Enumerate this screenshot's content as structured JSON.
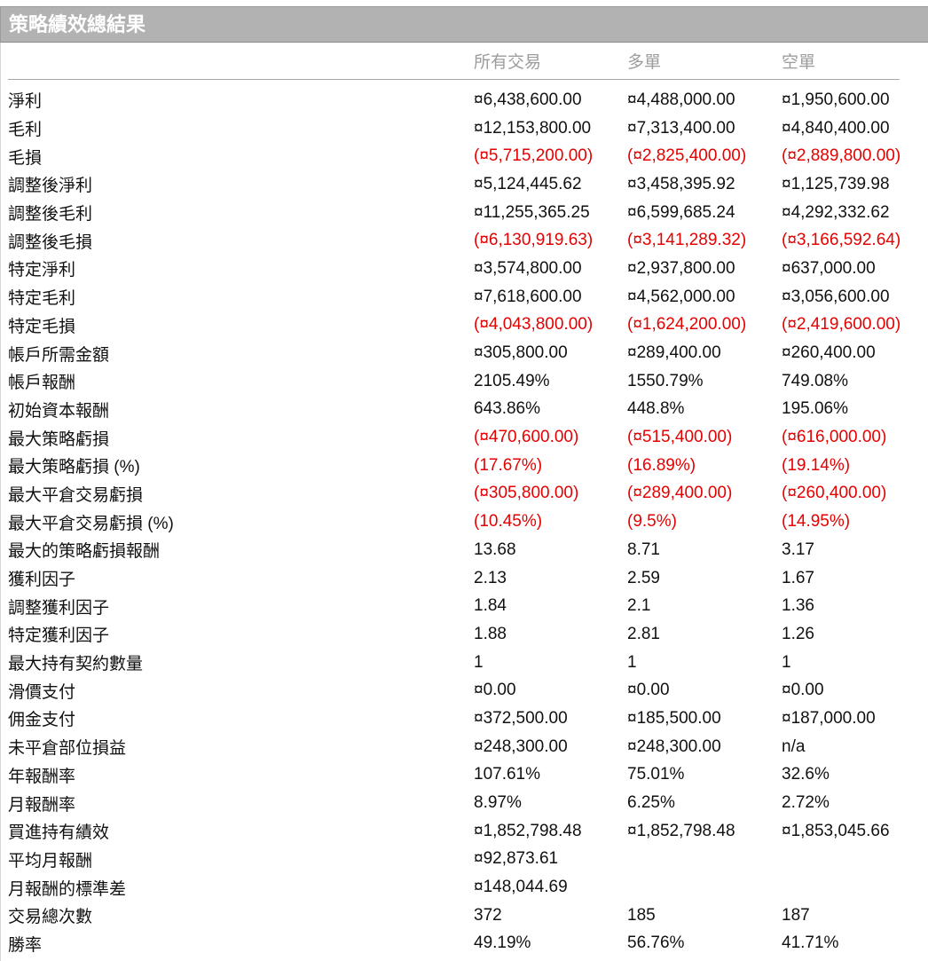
{
  "panel": {
    "title": "策略績效總結果"
  },
  "table": {
    "columns": [
      "所有交易",
      "多單",
      "空單"
    ],
    "rows": [
      {
        "label": "淨利",
        "values": [
          "¤6,438,600.00",
          "¤4,488,000.00",
          "¤1,950,600.00"
        ],
        "negative": false
      },
      {
        "label": "毛利",
        "values": [
          "¤12,153,800.00",
          "¤7,313,400.00",
          "¤4,840,400.00"
        ],
        "negative": false
      },
      {
        "label": "毛損",
        "values": [
          "(¤5,715,200.00)",
          "(¤2,825,400.00)",
          "(¤2,889,800.00)"
        ],
        "negative": true
      },
      {
        "label": "調整後淨利",
        "values": [
          "¤5,124,445.62",
          "¤3,458,395.92",
          "¤1,125,739.98"
        ],
        "negative": false
      },
      {
        "label": "調整後毛利",
        "values": [
          "¤11,255,365.25",
          "¤6,599,685.24",
          "¤4,292,332.62"
        ],
        "negative": false
      },
      {
        "label": "調整後毛損",
        "values": [
          "(¤6,130,919.63)",
          "(¤3,141,289.32)",
          "(¤3,166,592.64)"
        ],
        "negative": true
      },
      {
        "label": "特定淨利",
        "values": [
          "¤3,574,800.00",
          "¤2,937,800.00",
          "¤637,000.00"
        ],
        "negative": false
      },
      {
        "label": "特定毛利",
        "values": [
          "¤7,618,600.00",
          "¤4,562,000.00",
          "¤3,056,600.00"
        ],
        "negative": false
      },
      {
        "label": "特定毛損",
        "values": [
          "(¤4,043,800.00)",
          "(¤1,624,200.00)",
          "(¤2,419,600.00)"
        ],
        "negative": true
      },
      {
        "label": "帳戶所需金額",
        "values": [
          "¤305,800.00",
          "¤289,400.00",
          "¤260,400.00"
        ],
        "negative": false
      },
      {
        "label": "帳戶報酬",
        "values": [
          "2105.49%",
          "1550.79%",
          "749.08%"
        ],
        "negative": false
      },
      {
        "label": "初始資本報酬",
        "values": [
          "643.86%",
          "448.8%",
          "195.06%"
        ],
        "negative": false
      },
      {
        "label": "最大策略虧損",
        "values": [
          "(¤470,600.00)",
          "(¤515,400.00)",
          "(¤616,000.00)"
        ],
        "negative": true
      },
      {
        "label": "最大策略虧損 (%)",
        "values": [
          "(17.67%)",
          "(16.89%)",
          "(19.14%)"
        ],
        "negative": true
      },
      {
        "label": "最大平倉交易虧損",
        "values": [
          "(¤305,800.00)",
          "(¤289,400.00)",
          "(¤260,400.00)"
        ],
        "negative": true
      },
      {
        "label": "最大平倉交易虧損 (%)",
        "values": [
          "(10.45%)",
          "(9.5%)",
          "(14.95%)"
        ],
        "negative": true
      },
      {
        "label": "最大的策略虧損報酬",
        "values": [
          "13.68",
          "8.71",
          "3.17"
        ],
        "negative": false
      },
      {
        "label": "獲利因子",
        "values": [
          "2.13",
          "2.59",
          "1.67"
        ],
        "negative": false
      },
      {
        "label": "調整獲利因子",
        "values": [
          "1.84",
          "2.1",
          "1.36"
        ],
        "negative": false
      },
      {
        "label": "特定獲利因子",
        "values": [
          "1.88",
          "2.81",
          "1.26"
        ],
        "negative": false
      },
      {
        "label": "最大持有契約數量",
        "values": [
          "1",
          "1",
          "1"
        ],
        "negative": false
      },
      {
        "label": "滑價支付",
        "values": [
          "¤0.00",
          "¤0.00",
          "¤0.00"
        ],
        "negative": false
      },
      {
        "label": "佣金支付",
        "values": [
          "¤372,500.00",
          "¤185,500.00",
          "¤187,000.00"
        ],
        "negative": false
      },
      {
        "label": "未平倉部位損益",
        "values": [
          "¤248,300.00",
          "¤248,300.00",
          "n/a"
        ],
        "negative": false
      },
      {
        "label": "年報酬率",
        "values": [
          "107.61%",
          "75.01%",
          "32.6%"
        ],
        "negative": false
      },
      {
        "label": "月報酬率",
        "values": [
          "8.97%",
          "6.25%",
          "2.72%"
        ],
        "negative": false
      },
      {
        "label": "買進持有績效",
        "values": [
          "¤1,852,798.48",
          "¤1,852,798.48",
          "¤1,853,045.66"
        ],
        "negative": false
      },
      {
        "label": "平均月報酬",
        "values": [
          "¤92,873.61",
          "",
          ""
        ],
        "negative": false
      },
      {
        "label": "月報酬的標準差",
        "values": [
          "¤148,044.69",
          "",
          ""
        ],
        "negative": false
      },
      {
        "label": "交易總次數",
        "values": [
          "372",
          "185",
          "187"
        ],
        "negative": false
      },
      {
        "label": "勝率",
        "values": [
          "49.19%",
          "56.76%",
          "41.71%"
        ],
        "negative": false
      }
    ]
  },
  "colors": {
    "title_bar_bg": "#b2b2b2",
    "title_text": "#ffffff",
    "column_header_text": "#9c9c9c",
    "value_text": "#111111",
    "negative_value_text": "#e60000"
  }
}
